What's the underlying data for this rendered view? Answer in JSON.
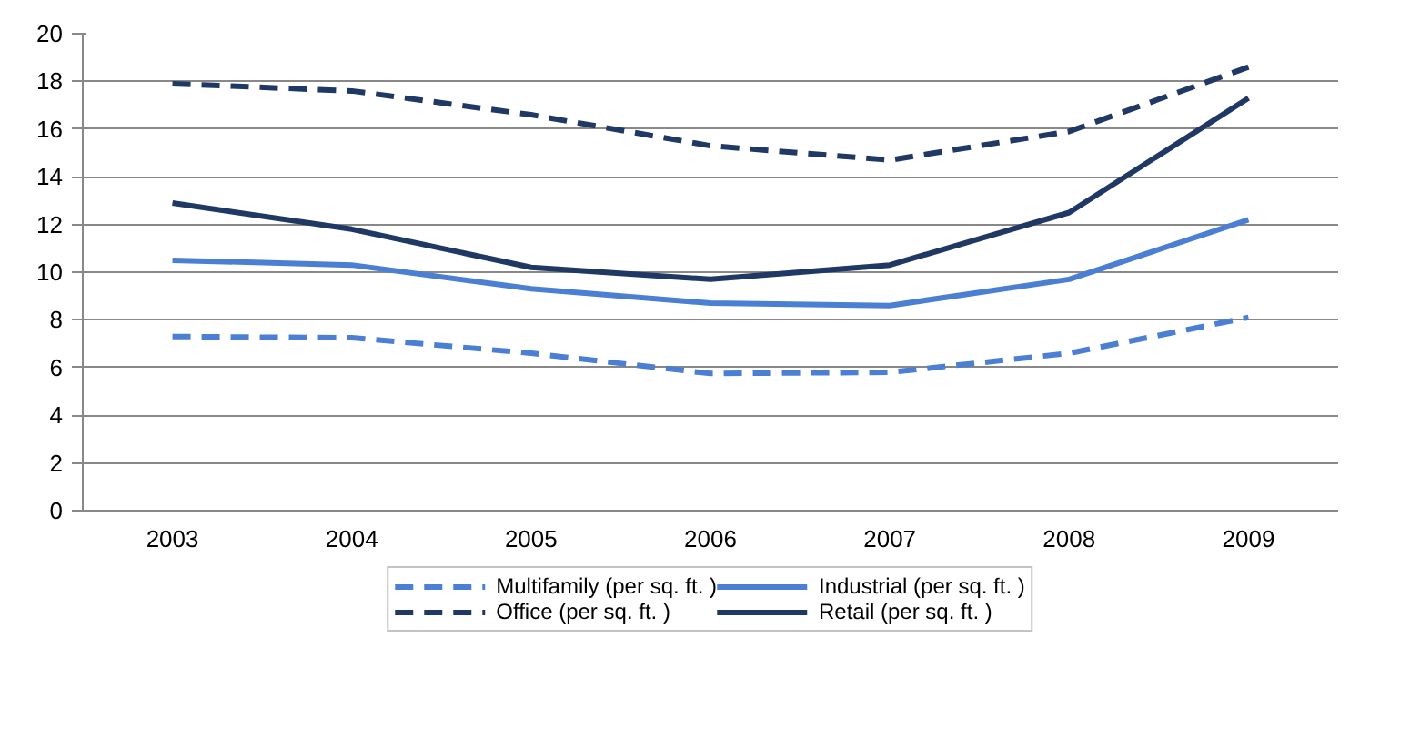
{
  "chart_data": {
    "type": "line",
    "categories": [
      "2003",
      "2004",
      "2005",
      "2006",
      "2007",
      "2008",
      "2009"
    ],
    "series": [
      {
        "name": "Multifamily (per sq. ft. )",
        "color": "#4a7fd4",
        "line_style": "dashed",
        "values": [
          7.3,
          7.25,
          6.6,
          5.75,
          5.8,
          6.6,
          8.1
        ]
      },
      {
        "name": "Industrial (per sq. ft. )",
        "color": "#4a7fd4",
        "line_style": "solid",
        "values": [
          10.5,
          10.3,
          9.3,
          8.7,
          8.6,
          9.7,
          12.2
        ]
      },
      {
        "name": "Office (per sq. ft. )",
        "color": "#1f3864",
        "line_style": "dashed",
        "values": [
          17.9,
          17.6,
          16.6,
          15.3,
          14.7,
          15.9,
          18.6
        ]
      },
      {
        "name": "Retail (per sq. ft. )",
        "color": "#1f3864",
        "line_style": "solid",
        "values": [
          12.9,
          11.8,
          10.2,
          9.7,
          10.3,
          12.5,
          17.3
        ]
      }
    ],
    "ylim": [
      0,
      20
    ],
    "yticks": [
      0,
      2,
      4,
      6,
      8,
      10,
      12,
      14,
      16,
      18,
      20
    ],
    "grid": "y",
    "legend": "bottom",
    "marker": "none"
  }
}
